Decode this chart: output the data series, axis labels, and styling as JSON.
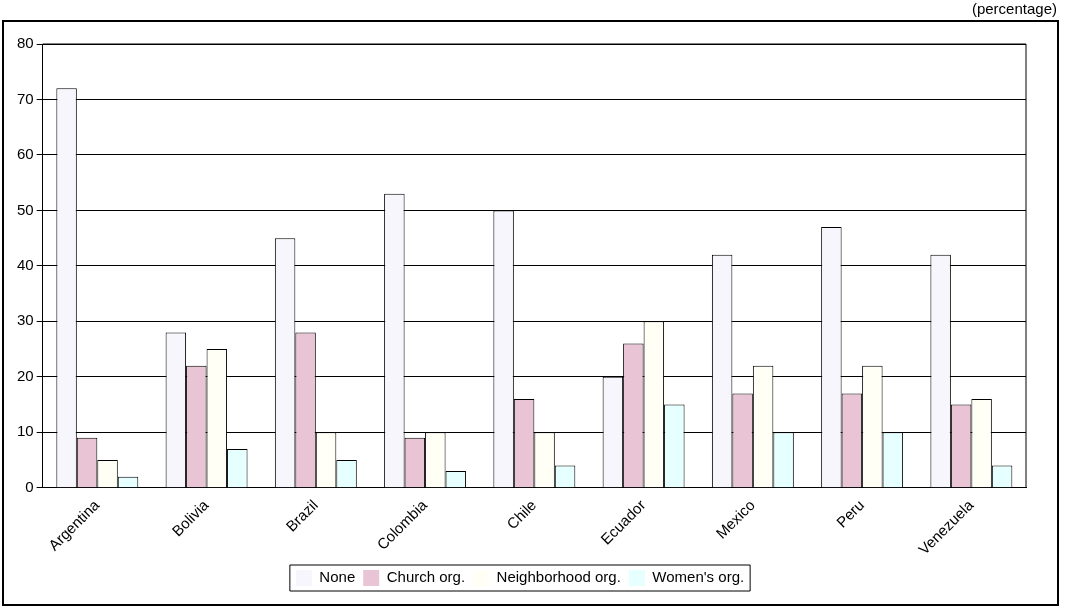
{
  "chart_data": {
    "type": "bar",
    "subtitle": "(percentage)",
    "categories": [
      "Argentina",
      "Bolivia",
      "Brazil",
      "Colombia",
      "Chile",
      "Ecuador",
      "Mexico",
      "Peru",
      "Venezuela"
    ],
    "series": [
      {
        "name": "None",
        "color": "#f6f6fc",
        "values": [
          72,
          28,
          45,
          53,
          50,
          20,
          42,
          47,
          42
        ]
      },
      {
        "name": "Church org.",
        "color": "#e8c4d4",
        "values": [
          9,
          22,
          28,
          9,
          16,
          26,
          17,
          17,
          15
        ]
      },
      {
        "name": "Neighborhood org.",
        "color": "#fffff6",
        "values": [
          5,
          25,
          10,
          10,
          10,
          30,
          22,
          22,
          16
        ]
      },
      {
        "name": "Women's org.",
        "color": "#e6ffff",
        "values": [
          2,
          7,
          5,
          3,
          4,
          15,
          10,
          10,
          4
        ]
      }
    ],
    "ylim": [
      0,
      80
    ],
    "yticks": [
      0,
      10,
      20,
      30,
      40,
      50,
      60,
      70,
      80
    ],
    "grid": "y",
    "legend": "bottom"
  }
}
